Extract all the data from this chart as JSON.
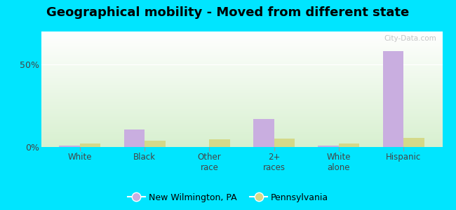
{
  "title": "Geographical mobility - Moved from different state",
  "categories": [
    "White",
    "Black",
    "Other\nrace",
    "2+\nraces",
    "White\nalone",
    "Hispanic"
  ],
  "new_wilmington": [
    0.8,
    10.5,
    0.0,
    17.0,
    0.8,
    58.0
  ],
  "pennsylvania": [
    2.0,
    4.0,
    4.5,
    5.0,
    2.2,
    5.5
  ],
  "nw_color": "#c9aee0",
  "pa_color": "#d4d98a",
  "bg_color_top": "#f0faf0",
  "bg_color_bottom": "#e8f5e0",
  "outer_bg": "#00e5ff",
  "yticks": [
    0,
    50
  ],
  "ylim": [
    0,
    70
  ],
  "legend_nw": "New Wilmington, PA",
  "legend_pa": "Pennsylvania",
  "title_fontsize": 13,
  "bar_width": 0.32
}
